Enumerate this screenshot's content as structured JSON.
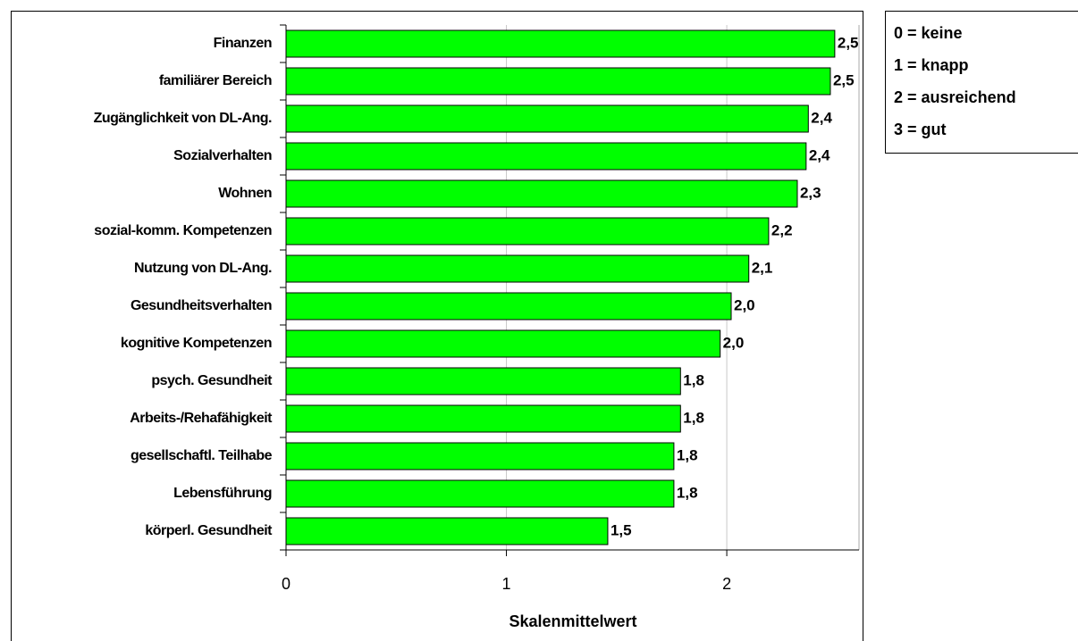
{
  "chart_data": {
    "type": "bar",
    "orientation": "horizontal",
    "categories": [
      "Finanzen",
      "familiärer Bereich",
      "Zugänglichkeit von DL-Ang.",
      "Sozialverhalten",
      "Wohnen",
      "sozial-komm. Kompetenzen",
      "Nutzung von DL-Ang.",
      "Gesundheitsverhalten",
      "kognitive Kompetenzen",
      "psych. Gesundheit",
      "Arbeits-/Rehafähigkeit",
      "gesellschaftl. Teilhabe",
      "Lebensführung",
      "körperl. Gesundheit"
    ],
    "values": [
      2.49,
      2.47,
      2.37,
      2.36,
      2.32,
      2.19,
      2.1,
      2.02,
      1.97,
      1.79,
      1.79,
      1.76,
      1.76,
      1.46
    ],
    "value_labels": [
      "2,5",
      "2,5",
      "2,4",
      "2,4",
      "2,3",
      "2,2",
      "2,1",
      "2,0",
      "2,0",
      "1,8",
      "1,8",
      "1,8",
      "1,8",
      "1,5"
    ],
    "color": "#00ff00",
    "xlim": [
      0,
      2.6
    ],
    "xticks": [
      0,
      1,
      2
    ],
    "grid": true,
    "x_label": "Skalenmittelwert",
    "legend_notes": [
      "0 = keine",
      "1 = knapp",
      "2 = ausreichend",
      "3 = gut"
    ]
  }
}
